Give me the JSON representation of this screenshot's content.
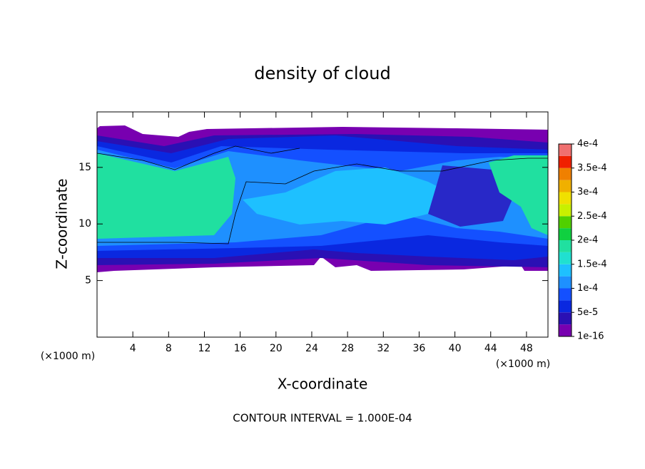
{
  "chart_data": {
    "type": "contour",
    "title": "density of cloud",
    "x_label": "X-coordinate",
    "y_label": "Z-coordinate",
    "x_unit_label": "(×1000 m)",
    "annotation": "CONTOUR INTERVAL = 1.000E-04",
    "xlim": [
      0,
      50.4
    ],
    "ylim": [
      0,
      19.9
    ],
    "xticks": [
      4,
      8,
      12,
      16,
      20,
      24,
      28,
      32,
      36,
      40,
      44,
      48
    ],
    "yticks": [
      5,
      10,
      15
    ],
    "colorbar": {
      "lim": [
        0,
        0.0004
      ],
      "levels": [
        1e-16,
        2.5e-05,
        5e-05,
        7.5e-05,
        0.0001,
        0.000125,
        0.00015,
        0.000175,
        0.0002,
        0.000225,
        0.00025,
        0.000275,
        0.0003,
        0.000325,
        0.00035,
        0.000375,
        0.0004
      ],
      "colors": [
        "#7800b0",
        "#2a10b4",
        "#0a28e0",
        "#1450ff",
        "#1e90ff",
        "#1ec0ff",
        "#20e0d0",
        "#20e0a0",
        "#10d040",
        "#50d000",
        "#c8f000",
        "#f0e000",
        "#f0b000",
        "#f08000",
        "#f02000",
        "#f07070"
      ],
      "ticks": [
        {
          "value": 1e-16,
          "label": "1e-16"
        },
        {
          "value": 5e-05,
          "label": "5e-5"
        },
        {
          "value": 0.0001,
          "label": "1e-4"
        },
        {
          "value": 0.00015,
          "label": "1.5e-4"
        },
        {
          "value": 0.0002,
          "label": "2e-4"
        },
        {
          "value": 0.00025,
          "label": "2.5e-4"
        },
        {
          "value": 0.0003,
          "label": "3e-4"
        },
        {
          "value": 0.00035,
          "label": "3.5e-4"
        },
        {
          "value": 0.0004,
          "label": "4e-4"
        }
      ]
    }
  }
}
